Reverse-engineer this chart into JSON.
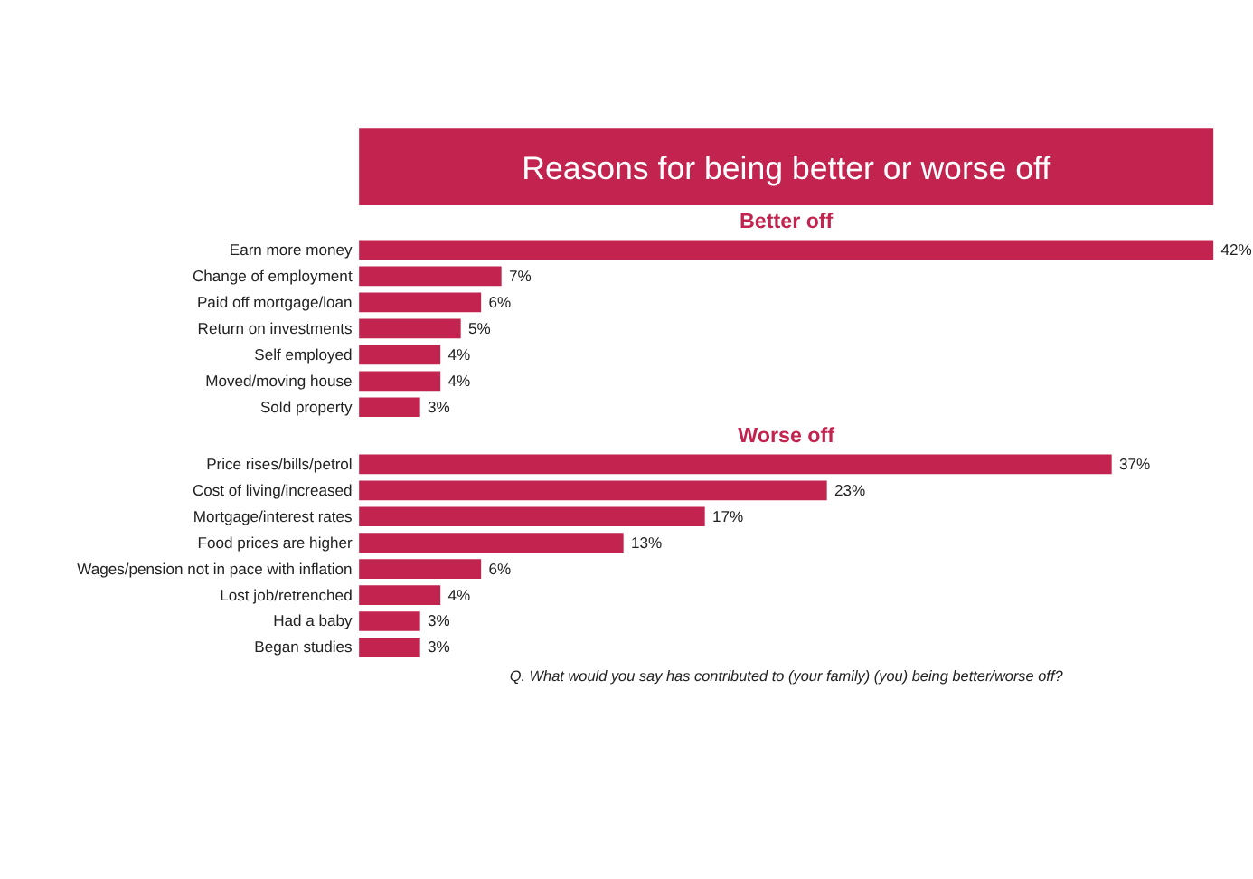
{
  "chart_data": [
    {
      "type": "bar",
      "orientation": "horizontal",
      "title": "Reasons for being better or worse off",
      "subtitle": "Better off",
      "color": "#c2244f",
      "categories": [
        "Earn more money",
        "Change of employment",
        "Paid off mortgage/loan",
        "Return on investments",
        "Self employed",
        "Moved/moving house",
        "Sold property"
      ],
      "values": [
        42,
        7,
        6,
        5,
        4,
        4,
        3
      ],
      "value_labels": [
        "42%",
        "7%",
        "6%",
        "5%",
        "4%",
        "4%",
        "3%"
      ]
    },
    {
      "type": "bar",
      "orientation": "horizontal",
      "subtitle": "Worse off",
      "color": "#c2244f",
      "categories": [
        "Price rises/bills/petrol",
        "Cost of living/increased",
        "Mortgage/interest rates",
        "Food prices are higher",
        "Wages/pension not in pace with inflation",
        "Lost job/retrenched",
        "Had a baby",
        "Began studies"
      ],
      "values": [
        37,
        23,
        17,
        13,
        6,
        4,
        3,
        3
      ],
      "value_labels": [
        "37%",
        "23%",
        "17%",
        "13%",
        "6%",
        "4%",
        "3%",
        "3%"
      ],
      "annotations": [
        "Q. What would you say has contributed to (your family) (you)  being better/worse off?"
      ]
    }
  ]
}
